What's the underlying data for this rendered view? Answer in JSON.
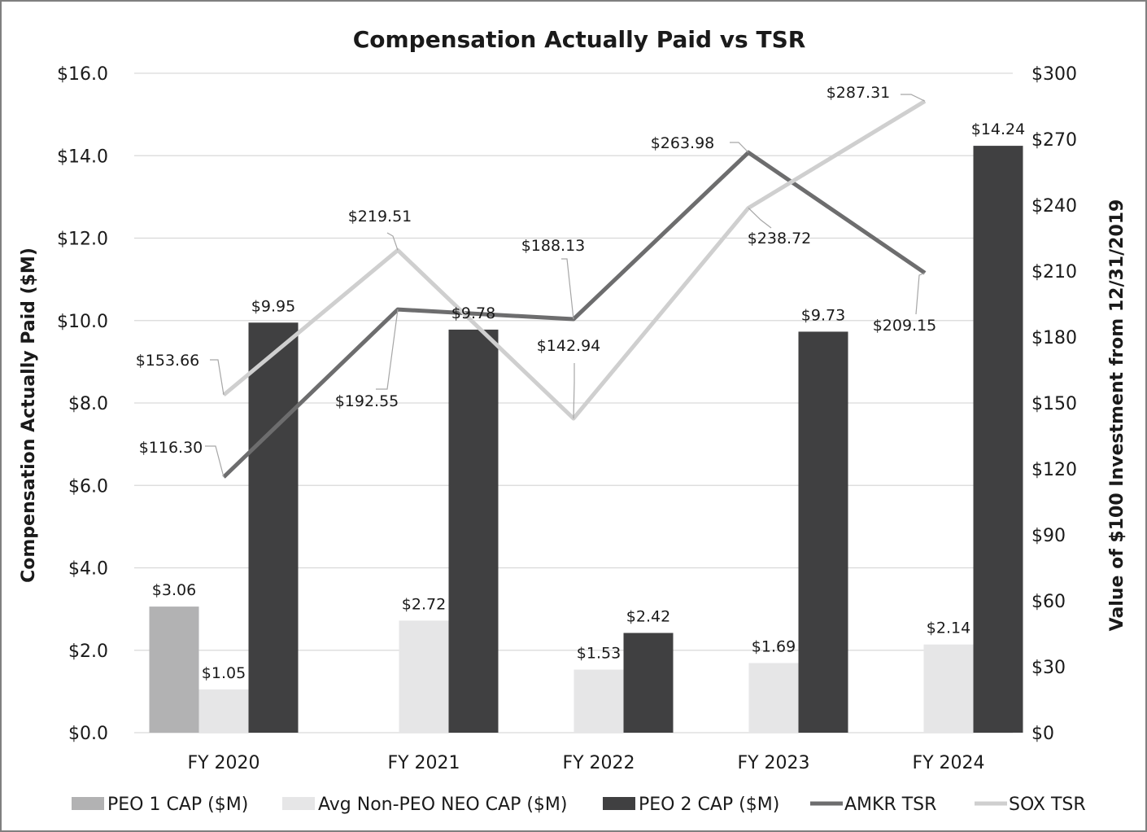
{
  "chart_data": {
    "type": "bar+line",
    "title": "Compensation Actually Paid vs TSR",
    "ylabel": "Compensation Actually Paid ($M)",
    "y2label": "Value of $100 Investment from 12/31/2019",
    "categories": [
      "FY 2020",
      "FY 2021",
      "FY 2022",
      "FY 2023",
      "FY 2024"
    ],
    "ylim": [
      0,
      16
    ],
    "y2lim": [
      0,
      300
    ],
    "yticks": [
      "$0.0",
      "$2.0",
      "$4.0",
      "$6.0",
      "$8.0",
      "$10.0",
      "$12.0",
      "$14.0",
      "$16.0"
    ],
    "y2ticks": [
      "$0",
      "$30",
      "$60",
      "$90",
      "$120",
      "$150",
      "$180",
      "$210",
      "$240",
      "$270",
      "$300"
    ],
    "bar_series": [
      {
        "name": "PEO 1 CAP ($M)",
        "color": "#b2b2b3",
        "values": [
          3.06,
          null,
          null,
          null,
          null
        ],
        "labels": [
          "$3.06",
          "",
          "",
          "",
          ""
        ]
      },
      {
        "name": "Avg Non-PEO NEO CAP ($M)",
        "color": "#e6e6e7",
        "values": [
          1.05,
          2.72,
          1.53,
          1.69,
          2.14
        ],
        "labels": [
          "$1.05",
          "$2.72",
          "$1.53",
          "$1.69",
          "$2.14"
        ]
      },
      {
        "name": "PEO 2 CAP ($M)",
        "color": "#404041",
        "values": [
          9.95,
          9.78,
          2.42,
          9.73,
          14.24
        ],
        "labels": [
          "$9.95",
          "$9.78",
          "$2.42",
          "$9.73",
          "$14.24"
        ]
      }
    ],
    "line_series": [
      {
        "name": "AMKR TSR",
        "color": "#6d6d6e",
        "axis": "right",
        "values": [
          116.3,
          192.55,
          188.13,
          263.98,
          209.15
        ],
        "labels": [
          "$116.30",
          "$192.55",
          "$188.13",
          "$263.98",
          "$209.15"
        ]
      },
      {
        "name": "SOX TSR",
        "color": "#cfcfcf",
        "axis": "right",
        "values": [
          153.66,
          219.51,
          142.94,
          238.72,
          287.31
        ],
        "labels": [
          "$153.66",
          "$219.51",
          "$142.94",
          "$238.72",
          "$287.31"
        ]
      }
    ],
    "grid": true,
    "legend": "bottom"
  }
}
